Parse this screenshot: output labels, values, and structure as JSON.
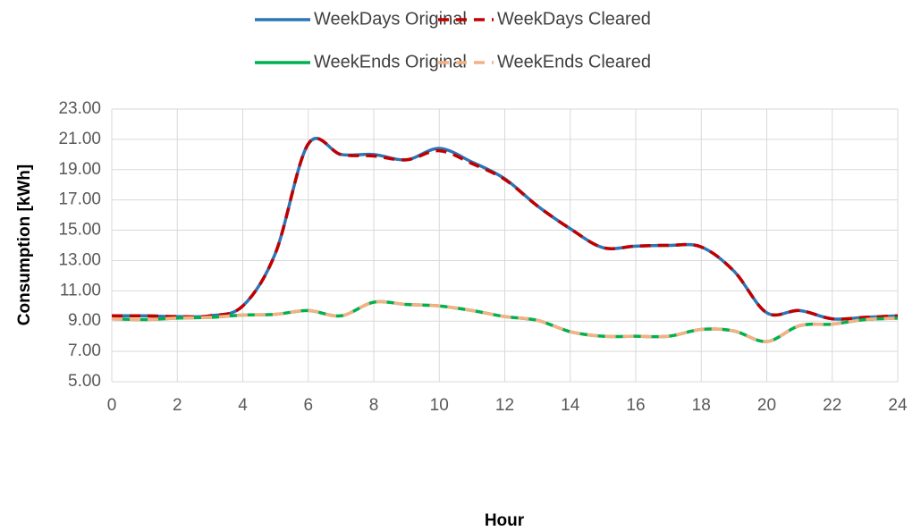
{
  "chart_data": {
    "type": "line",
    "x": [
      0,
      1,
      2,
      3,
      4,
      5,
      6,
      7,
      8,
      9,
      10,
      11,
      12,
      13,
      14,
      15,
      16,
      17,
      18,
      19,
      20,
      21,
      22,
      23,
      24
    ],
    "series": [
      {
        "name": "WeekDays Original",
        "color": "#2e75b6",
        "dashed": false,
        "values": [
          9.35,
          9.35,
          9.3,
          9.35,
          10.0,
          13.5,
          20.7,
          20.0,
          20.0,
          19.65,
          20.4,
          19.5,
          18.4,
          16.6,
          15.1,
          13.85,
          13.95,
          14.0,
          13.9,
          12.3,
          9.55,
          9.7,
          9.15,
          9.25,
          9.35
        ]
      },
      {
        "name": "WeekDays Cleared",
        "color": "#c00000",
        "dashed": true,
        "values": [
          9.35,
          9.35,
          9.3,
          9.35,
          10.0,
          13.5,
          20.7,
          20.0,
          19.9,
          19.65,
          20.25,
          19.4,
          18.35,
          16.6,
          15.1,
          13.85,
          13.95,
          14.0,
          13.9,
          12.3,
          9.55,
          9.7,
          9.15,
          9.25,
          9.35
        ]
      },
      {
        "name": "WeekEnds Original",
        "color": "#00b050",
        "dashed": false,
        "values": [
          9.15,
          9.1,
          9.2,
          9.25,
          9.4,
          9.45,
          9.7,
          9.35,
          10.25,
          10.1,
          10.0,
          9.7,
          9.3,
          9.05,
          8.3,
          8.0,
          8.0,
          8.0,
          8.45,
          8.35,
          7.65,
          8.7,
          8.8,
          9.1,
          9.2
        ]
      },
      {
        "name": "WeekEnds Cleared",
        "color": "#f4b183",
        "dashed": true,
        "values": [
          9.15,
          9.1,
          9.2,
          9.25,
          9.4,
          9.45,
          9.7,
          9.35,
          10.25,
          10.1,
          10.0,
          9.7,
          9.3,
          9.05,
          8.3,
          8.0,
          8.0,
          8.0,
          8.45,
          8.35,
          7.65,
          8.7,
          8.8,
          9.1,
          9.2
        ]
      }
    ],
    "xlim": [
      0,
      24
    ],
    "xticks": [
      0,
      2,
      4,
      6,
      8,
      10,
      12,
      14,
      16,
      18,
      20,
      22,
      24
    ],
    "ylim": [
      5,
      23
    ],
    "yticks": [
      {
        "value": 5,
        "label": "5.00"
      },
      {
        "value": 7,
        "label": "7.00"
      },
      {
        "value": 9,
        "label": "9.00"
      },
      {
        "value": 11,
        "label": "11.00"
      },
      {
        "value": 13,
        "label": "13.00"
      },
      {
        "value": 15,
        "label": "15.00"
      },
      {
        "value": 17,
        "label": "17.00"
      },
      {
        "value": 19,
        "label": "19.00"
      },
      {
        "value": 21,
        "label": "21.00"
      },
      {
        "value": 23,
        "label": "23.00"
      }
    ],
    "xlabel": "Hour",
    "ylabel": "Consumption [kWh]",
    "grid": true,
    "legend": "top"
  }
}
